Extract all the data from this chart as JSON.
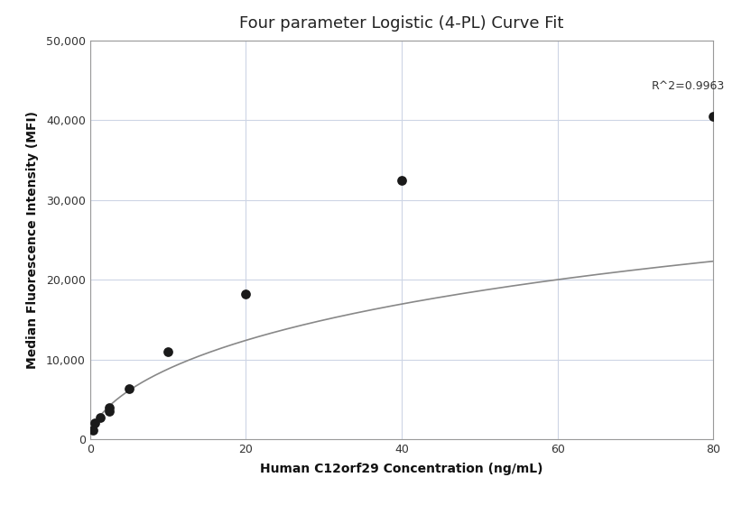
{
  "title": "Four parameter Logistic (4-PL) Curve Fit",
  "xlabel": "Human C12orf29 Concentration (ng/mL)",
  "ylabel": "Median Fluorescence Intensity (MFI)",
  "scatter_x": [
    0.31,
    0.63,
    1.25,
    2.5,
    2.5,
    5.0,
    10.0,
    20.0,
    40.0,
    80.0
  ],
  "scatter_y": [
    1100,
    2100,
    2700,
    3500,
    4000,
    6300,
    11000,
    18200,
    32500,
    40500
  ],
  "r_squared": "R^2=0.9963",
  "dot_color": "#1a1a1a",
  "line_color": "#888888",
  "dot_size": 60,
  "xlim": [
    0,
    80
  ],
  "ylim": [
    0,
    50000
  ],
  "yticks": [
    0,
    10000,
    20000,
    30000,
    40000,
    50000
  ],
  "xticks": [
    0,
    20,
    40,
    60,
    80
  ],
  "grid_color": "#cdd5e5",
  "bg_color": "#ffffff",
  "title_fontsize": 13,
  "label_fontsize": 10,
  "annotation_fontsize": 9,
  "4pl_A": 200,
  "4pl_B": 0.62,
  "4pl_C": 150,
  "4pl_D": 55000
}
